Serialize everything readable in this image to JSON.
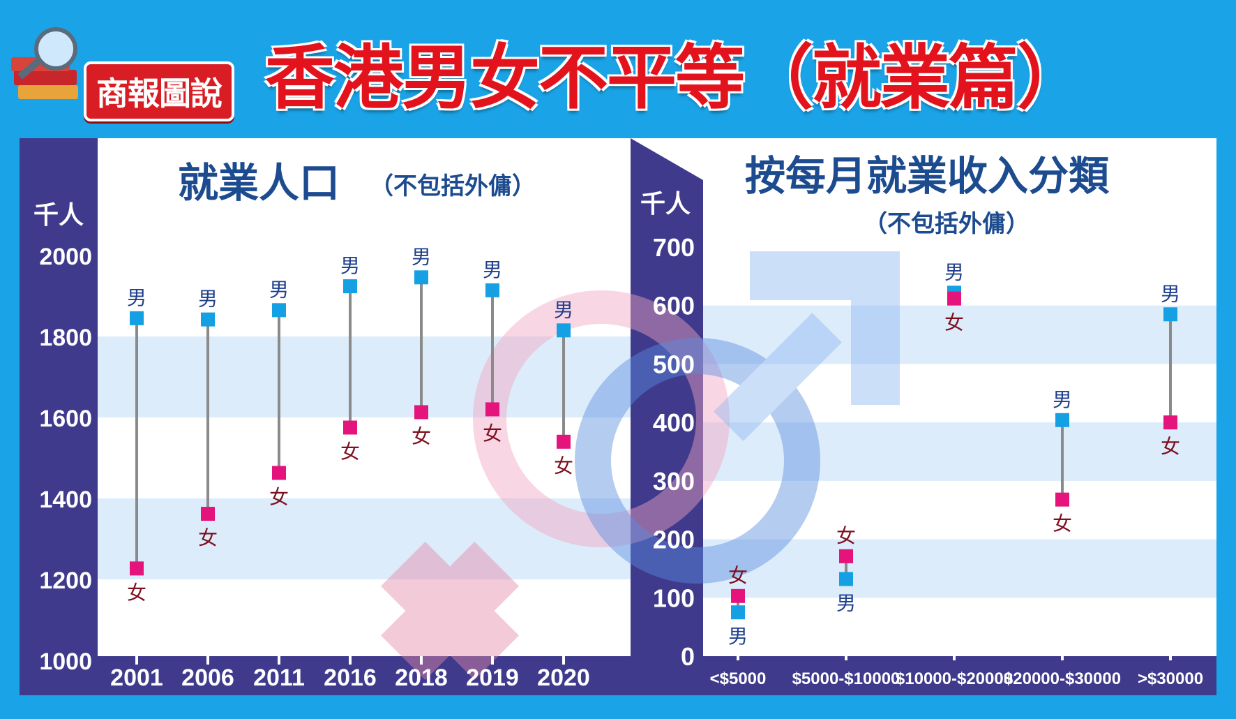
{
  "header": {
    "logo_text": "商報圖說",
    "title": "香港男女不平等（就業篇）"
  },
  "colors": {
    "background": "#1aa3e6",
    "panel_dark": "#3f3a8c",
    "band": "#dcecfb",
    "male": "#14a0e2",
    "female": "#e4147c",
    "title": "#1c4b8f",
    "header_red": "#e2131c"
  },
  "icons": [
    "magnifier-books-icon",
    "female-symbol-icon",
    "male-symbol-icon"
  ],
  "chart_data": [
    {
      "type": "dumbbell",
      "title": "就業人口",
      "subtitle": "（不包括外傭）",
      "ylabel": "千人",
      "ylim": [
        1000,
        2000
      ],
      "yticks": [
        "2000",
        "1800",
        "1600",
        "1400",
        "1200",
        "1000"
      ],
      "categories": [
        "2001",
        "2006",
        "2011",
        "2016",
        "2018",
        "2019",
        "2020"
      ],
      "series": [
        {
          "name": "男",
          "values": [
            1845,
            1842,
            1865,
            1924,
            1946,
            1914,
            1815
          ]
        },
        {
          "name": "女",
          "values": [
            1227,
            1362,
            1463,
            1575,
            1613,
            1620,
            1540
          ]
        }
      ]
    },
    {
      "type": "dumbbell",
      "title": "按每月就業收入分類",
      "subtitle": "（不包括外傭）",
      "ylabel": "千人",
      "ylim": [
        0,
        700
      ],
      "yticks": [
        "700",
        "600",
        "500",
        "400",
        "300",
        "200",
        "100",
        "0"
      ],
      "categories": [
        "<$5000",
        "$5000-$10000",
        "$10000-$20000",
        "$20000-$30000",
        ">$30000"
      ],
      "series": [
        {
          "name": "男",
          "values": [
            75,
            132,
            622,
            404,
            585
          ]
        },
        {
          "name": "女",
          "values": [
            103,
            171,
            612,
            268,
            400
          ]
        }
      ]
    }
  ]
}
